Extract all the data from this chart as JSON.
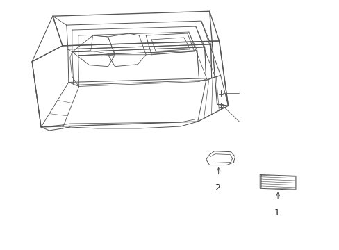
{
  "background_color": "#ffffff",
  "line_color": "#555555",
  "line_width": 0.8,
  "fig_width": 4.89,
  "fig_height": 3.6,
  "dpi": 100,
  "label1_text": "1",
  "label2_text": "2"
}
